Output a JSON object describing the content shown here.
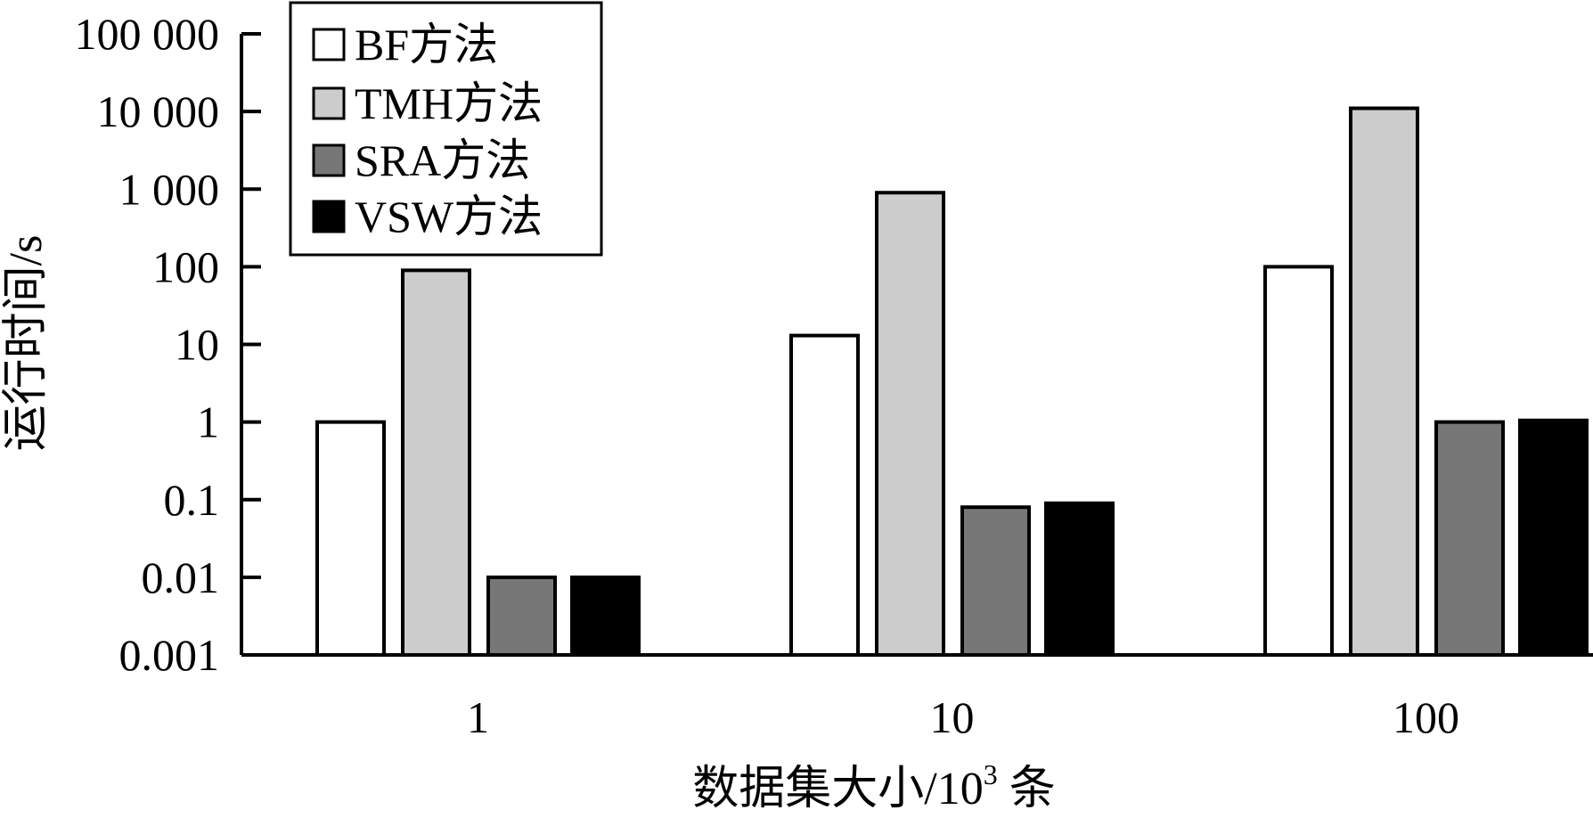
{
  "chart_data": {
    "type": "bar",
    "title": "",
    "xlabel_main": "数据集大小/10",
    "xlabel_sup": "3",
    "xlabel_tail": " 条",
    "ylabel": "运行时间/s",
    "yscale": "log",
    "ylim": [
      0.001,
      100000
    ],
    "yticks": [
      0.001,
      0.01,
      0.1,
      1,
      10,
      100,
      1000,
      10000,
      100000
    ],
    "ytick_labels": [
      "0.001",
      "0.01",
      "0.1",
      "1",
      "10",
      "100",
      "1 000",
      "10 000",
      "100 000"
    ],
    "categories": [
      "1",
      "10",
      "100"
    ],
    "series": [
      {
        "name": "BF方法",
        "color": "#ffffff",
        "values": [
          1,
          13,
          100
        ]
      },
      {
        "name": "TMH方法",
        "color": "#cccccc",
        "values": [
          90,
          900,
          11000
        ]
      },
      {
        "name": "SRA方法",
        "color": "#777777",
        "values": [
          0.01,
          0.08,
          1
        ]
      },
      {
        "name": "VSW方法",
        "color": "#000000",
        "values": [
          0.01,
          0.09,
          1.05
        ]
      }
    ],
    "legend_position": "top-left",
    "grid": false
  }
}
